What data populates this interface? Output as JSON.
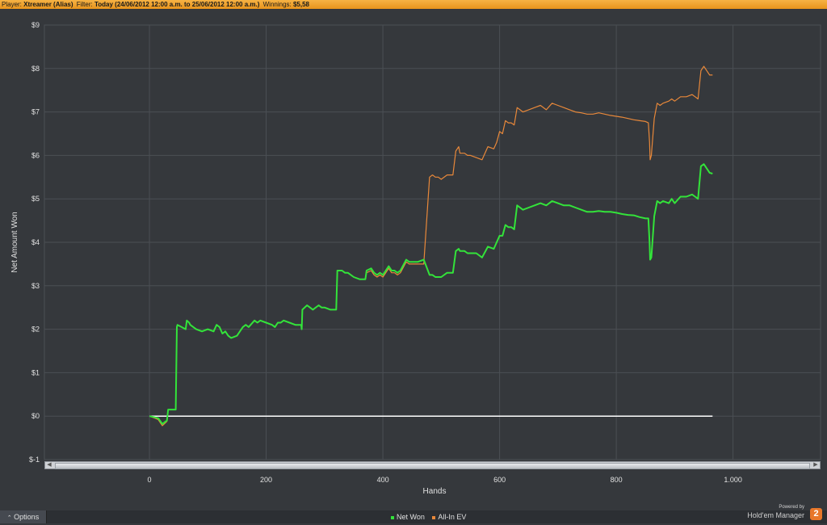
{
  "topbar": {
    "player_label": "Player:",
    "player_value": "Xtreamer (Alias)",
    "filter_label": "Filter:",
    "filter_value": "Today (24/06/2012 12:00 a.m. to 25/06/2012 12:00 a.m.)",
    "winnings_label": "Winnings:",
    "winnings_value": "$5,58"
  },
  "footer": {
    "options_label": "Options",
    "powered_by": "Powered by",
    "brand_name": "Hold'em Manager",
    "brand_mark": "2"
  },
  "colors": {
    "background": "#35383c",
    "grid": "#4b4f54",
    "net_won": "#33e33a",
    "all_in_ev": "#e8883a",
    "zero_line": "#ffffff",
    "tick_text": "#e0e0e0"
  },
  "chart_data": {
    "type": "line",
    "title": "",
    "xlabel": "Hands",
    "ylabel": "Net Amount Won",
    "xlim": [
      -180,
      1150
    ],
    "ylim": [
      -1,
      9
    ],
    "x_ticks": [
      0,
      200,
      400,
      600,
      800,
      1000
    ],
    "x_tick_labels": [
      "0",
      "200",
      "400",
      "600",
      "800",
      "1.000"
    ],
    "y_ticks": [
      -1,
      0,
      1,
      2,
      3,
      4,
      5,
      6,
      7,
      8,
      9
    ],
    "y_tick_labels": [
      "$-1",
      "$0",
      "$1",
      "$2",
      "$3",
      "$4",
      "$5",
      "$6",
      "$7",
      "$8",
      "$9"
    ],
    "grid": true,
    "legend": "bottom-center",
    "series": [
      {
        "name": "Net Won",
        "color": "#33e33a",
        "x": [
          0,
          10,
          15,
          22,
          30,
          32,
          35,
          40,
          45,
          47,
          48,
          55,
          62,
          64,
          68,
          70,
          75,
          80,
          90,
          100,
          110,
          115,
          120,
          125,
          130,
          135,
          140,
          150,
          160,
          165,
          170,
          180,
          185,
          190,
          200,
          210,
          215,
          220,
          225,
          230,
          240,
          250,
          260,
          261,
          262,
          270,
          275,
          280,
          290,
          295,
          300,
          310,
          320,
          322,
          330,
          335,
          340,
          350,
          360,
          370,
          372,
          380,
          385,
          390,
          395,
          400,
          410,
          415,
          420,
          425,
          430,
          440,
          445,
          450,
          460,
          470,
          480,
          485,
          490,
          495,
          500,
          510,
          520,
          525,
          530,
          532,
          540,
          545,
          550,
          560,
          570,
          580,
          590,
          595,
          600,
          605,
          610,
          615,
          620,
          625,
          630,
          635,
          640,
          650,
          660,
          670,
          680,
          690,
          700,
          710,
          720,
          730,
          740,
          750,
          760,
          770,
          780,
          790,
          800,
          810,
          820,
          830,
          840,
          850,
          855,
          857,
          858,
          860,
          865,
          870,
          875,
          880,
          890,
          895,
          900,
          910,
          920,
          930,
          935,
          940,
          945,
          950,
          960,
          965
        ],
        "y": [
          0,
          -0.03,
          -0.05,
          -0.18,
          -0.1,
          0.15,
          0.15,
          0.15,
          0.15,
          2.05,
          2.1,
          2.05,
          2.0,
          2.2,
          2.15,
          2.1,
          2.05,
          2.0,
          1.95,
          2.0,
          1.95,
          2.1,
          2.05,
          1.9,
          1.95,
          1.85,
          1.8,
          1.85,
          2.05,
          2.1,
          2.05,
          2.2,
          2.15,
          2.2,
          2.15,
          2.1,
          2.05,
          2.15,
          2.15,
          2.2,
          2.15,
          2.1,
          2.1,
          2.0,
          2.45,
          2.55,
          2.5,
          2.45,
          2.55,
          2.5,
          2.5,
          2.45,
          2.45,
          3.35,
          3.35,
          3.3,
          3.3,
          3.2,
          3.15,
          3.15,
          3.35,
          3.4,
          3.3,
          3.25,
          3.3,
          3.25,
          3.45,
          3.35,
          3.35,
          3.3,
          3.35,
          3.6,
          3.55,
          3.55,
          3.55,
          3.6,
          3.25,
          3.25,
          3.2,
          3.2,
          3.2,
          3.3,
          3.3,
          3.8,
          3.85,
          3.8,
          3.8,
          3.75,
          3.75,
          3.75,
          3.65,
          3.9,
          3.85,
          4.0,
          4.15,
          4.15,
          4.4,
          4.35,
          4.35,
          4.3,
          4.85,
          4.8,
          4.75,
          4.8,
          4.85,
          4.9,
          4.85,
          4.95,
          4.9,
          4.85,
          4.85,
          4.8,
          4.75,
          4.7,
          4.7,
          4.72,
          4.7,
          4.7,
          4.68,
          4.65,
          4.63,
          4.62,
          4.58,
          4.55,
          4.55,
          4.0,
          3.6,
          3.65,
          4.6,
          4.95,
          4.9,
          4.95,
          4.9,
          5.0,
          4.9,
          5.05,
          5.05,
          5.1,
          5.05,
          5.0,
          5.75,
          5.8,
          5.6,
          5.58
        ]
      },
      {
        "name": "All-In EV",
        "color": "#e8883a",
        "x": [
          0,
          10,
          15,
          22,
          30,
          32,
          35,
          40,
          45,
          47,
          48,
          55,
          62,
          64,
          68,
          70,
          75,
          80,
          90,
          100,
          110,
          115,
          120,
          125,
          130,
          135,
          140,
          150,
          160,
          165,
          170,
          180,
          185,
          190,
          200,
          210,
          215,
          220,
          225,
          230,
          240,
          250,
          260,
          261,
          262,
          270,
          275,
          280,
          290,
          295,
          300,
          310,
          320,
          322,
          330,
          335,
          340,
          350,
          360,
          370,
          372,
          380,
          385,
          390,
          395,
          400,
          410,
          415,
          420,
          425,
          430,
          440,
          445,
          450,
          460,
          470,
          480,
          485,
          490,
          495,
          500,
          510,
          520,
          525,
          530,
          532,
          540,
          545,
          550,
          560,
          570,
          580,
          590,
          595,
          600,
          605,
          610,
          615,
          620,
          625,
          630,
          635,
          640,
          650,
          660,
          670,
          680,
          690,
          700,
          710,
          720,
          730,
          740,
          750,
          760,
          770,
          780,
          790,
          800,
          810,
          820,
          830,
          840,
          850,
          855,
          857,
          858,
          860,
          865,
          870,
          875,
          880,
          890,
          895,
          900,
          910,
          920,
          930,
          935,
          940,
          945,
          950,
          960,
          965
        ],
        "y": [
          0,
          -0.05,
          -0.08,
          -0.22,
          -0.12,
          0.15,
          0.15,
          0.15,
          0.15,
          2.05,
          2.1,
          2.05,
          2.0,
          2.2,
          2.15,
          2.1,
          2.05,
          2.0,
          1.95,
          2.0,
          1.95,
          2.1,
          2.05,
          1.9,
          1.95,
          1.85,
          1.8,
          1.85,
          2.05,
          2.1,
          2.05,
          2.2,
          2.15,
          2.2,
          2.15,
          2.1,
          2.05,
          2.15,
          2.15,
          2.2,
          2.15,
          2.1,
          2.1,
          2.0,
          2.45,
          2.55,
          2.5,
          2.45,
          2.55,
          2.5,
          2.5,
          2.45,
          2.45,
          3.35,
          3.35,
          3.3,
          3.3,
          3.2,
          3.15,
          3.15,
          3.3,
          3.35,
          3.25,
          3.2,
          3.25,
          3.2,
          3.4,
          3.3,
          3.3,
          3.25,
          3.3,
          3.55,
          3.5,
          3.5,
          3.5,
          3.5,
          5.5,
          5.55,
          5.5,
          5.5,
          5.45,
          5.55,
          5.55,
          6.1,
          6.2,
          6.05,
          6.05,
          6.0,
          6.0,
          5.95,
          5.9,
          6.2,
          6.15,
          6.3,
          6.55,
          6.5,
          6.8,
          6.75,
          6.75,
          6.7,
          7.1,
          7.05,
          7.0,
          7.05,
          7.1,
          7.15,
          7.05,
          7.2,
          7.15,
          7.1,
          7.05,
          7.0,
          6.98,
          6.95,
          6.95,
          6.98,
          6.95,
          6.92,
          6.9,
          6.88,
          6.85,
          6.82,
          6.8,
          6.78,
          6.75,
          6.3,
          5.9,
          6.0,
          6.85,
          7.2,
          7.15,
          7.2,
          7.25,
          7.3,
          7.25,
          7.35,
          7.35,
          7.4,
          7.35,
          7.3,
          7.95,
          8.05,
          7.85,
          7.85
        ]
      },
      {
        "name": "",
        "color": "#ffffff",
        "x": [
          0,
          965
        ],
        "y": [
          0,
          0
        ]
      }
    ]
  }
}
